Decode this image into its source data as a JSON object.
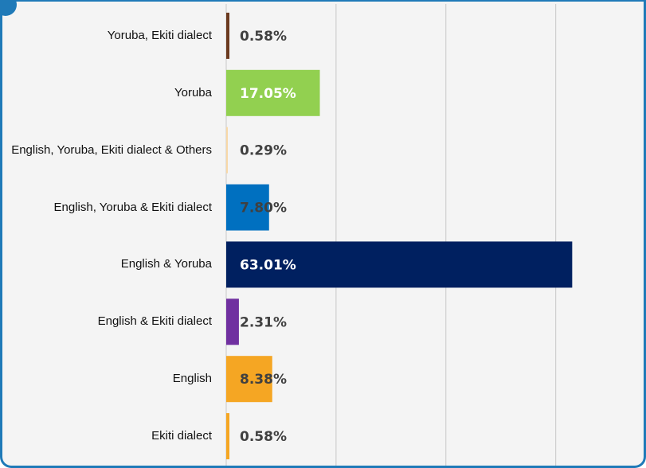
{
  "chart_data": {
    "type": "barh",
    "categories": [
      "Yoruba, Ekiti dialect",
      "Yoruba",
      "English, Yoruba, Ekiti dialect & Others",
      "English, Yoruba & Ekiti dialect",
      "English & Yoruba",
      "English & Ekiti dialect",
      "English",
      "Ekiti dialect"
    ],
    "values": [
      0.58,
      17.05,
      0.29,
      7.8,
      63.01,
      2.31,
      8.38,
      0.58
    ],
    "value_labels": [
      "0.58%",
      "17.05%",
      "0.29%",
      "7.80%",
      "63.01%",
      "2.31%",
      "8.38%",
      "0.58%"
    ],
    "colors": [
      "#6b3a1f",
      "#92d050",
      "#f7d8a8",
      "#0070c0",
      "#002060",
      "#7030a0",
      "#f5a623",
      "#f5a623"
    ],
    "xlim": [
      0,
      75
    ],
    "xticks": [
      0,
      20,
      40,
      60
    ],
    "grid": true
  }
}
